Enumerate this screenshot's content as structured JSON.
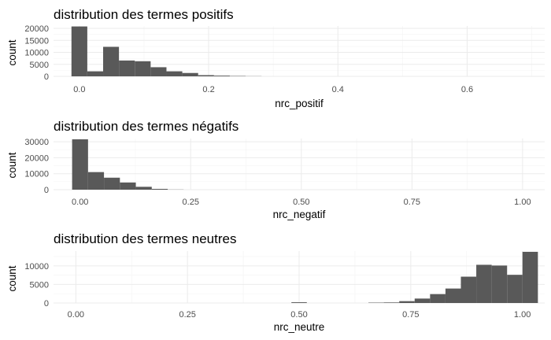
{
  "chart_data": [
    {
      "type": "bar",
      "title": "distribution des termes positifs",
      "xlabel": "nrc_positif",
      "ylabel": "count",
      "xlim": [
        -0.04,
        0.72
      ],
      "ylim": [
        0,
        21000
      ],
      "x_ticks": [
        0.0,
        0.2,
        0.4,
        0.6
      ],
      "x_tick_labels": [
        "0.0",
        "0.2",
        "0.4",
        "0.6"
      ],
      "y_ticks": [
        0,
        5000,
        10000,
        15000,
        20000
      ],
      "y_tick_labels": [
        "0",
        "5000",
        "10000",
        "15000",
        "20000"
      ],
      "bin_width": 0.0245,
      "bins": [
        {
          "x": 0.0,
          "count": 20800
        },
        {
          "x": 0.0245,
          "count": 2100
        },
        {
          "x": 0.049,
          "count": 12300
        },
        {
          "x": 0.0735,
          "count": 6600
        },
        {
          "x": 0.098,
          "count": 6300
        },
        {
          "x": 0.1225,
          "count": 3800
        },
        {
          "x": 0.147,
          "count": 2100
        },
        {
          "x": 0.1715,
          "count": 1400
        },
        {
          "x": 0.196,
          "count": 500
        },
        {
          "x": 0.2205,
          "count": 300
        },
        {
          "x": 0.245,
          "count": 150
        },
        {
          "x": 0.2695,
          "count": 60
        }
      ],
      "grid": true,
      "bar_color": "#595959"
    },
    {
      "type": "bar",
      "title": "distribution des termes négatifs",
      "xlabel": "nrc_negatif",
      "ylabel": "count",
      "xlim": [
        -0.06,
        1.05
      ],
      "ylim": [
        0,
        32000
      ],
      "x_ticks": [
        0.0,
        0.25,
        0.5,
        0.75,
        1.0
      ],
      "x_tick_labels": [
        "0.00",
        "0.25",
        "0.50",
        "0.75",
        "1.00"
      ],
      "y_ticks": [
        0,
        10000,
        20000,
        30000
      ],
      "y_tick_labels": [
        "0",
        "10000",
        "20000",
        "30000"
      ],
      "bin_width": 0.036,
      "bins": [
        {
          "x": 0.0,
          "count": 31500
        },
        {
          "x": 0.036,
          "count": 11000
        },
        {
          "x": 0.072,
          "count": 7500
        },
        {
          "x": 0.108,
          "count": 4500
        },
        {
          "x": 0.144,
          "count": 1800
        },
        {
          "x": 0.18,
          "count": 500
        },
        {
          "x": 0.216,
          "count": 100
        }
      ],
      "grid": true,
      "bar_color": "#595959"
    },
    {
      "type": "bar",
      "title": "distribution des termes neutres",
      "xlabel": "nrc_neutre",
      "ylabel": "count",
      "xlim": [
        -0.05,
        1.05
      ],
      "ylim": [
        0,
        14000
      ],
      "x_ticks": [
        0.0,
        0.25,
        0.5,
        0.75,
        1.0
      ],
      "x_tick_labels": [
        "0.00",
        "0.25",
        "0.50",
        "0.75",
        "1.00"
      ],
      "y_ticks": [
        0,
        5000,
        10000
      ],
      "y_tick_labels": [
        "0",
        "5000",
        "10000"
      ],
      "bin_width": 0.0345,
      "bins": [
        {
          "x": 0.5,
          "count": 200
        },
        {
          "x": 0.6725,
          "count": 100
        },
        {
          "x": 0.707,
          "count": 150
        },
        {
          "x": 0.7415,
          "count": 500
        },
        {
          "x": 0.776,
          "count": 1200
        },
        {
          "x": 0.8105,
          "count": 2400
        },
        {
          "x": 0.845,
          "count": 3900
        },
        {
          "x": 0.8795,
          "count": 7100
        },
        {
          "x": 0.914,
          "count": 10300
        },
        {
          "x": 0.9485,
          "count": 10100
        },
        {
          "x": 0.983,
          "count": 7600
        },
        {
          "x": 1.0175,
          "count": 13800
        }
      ],
      "grid": true,
      "bar_color": "#595959"
    }
  ]
}
